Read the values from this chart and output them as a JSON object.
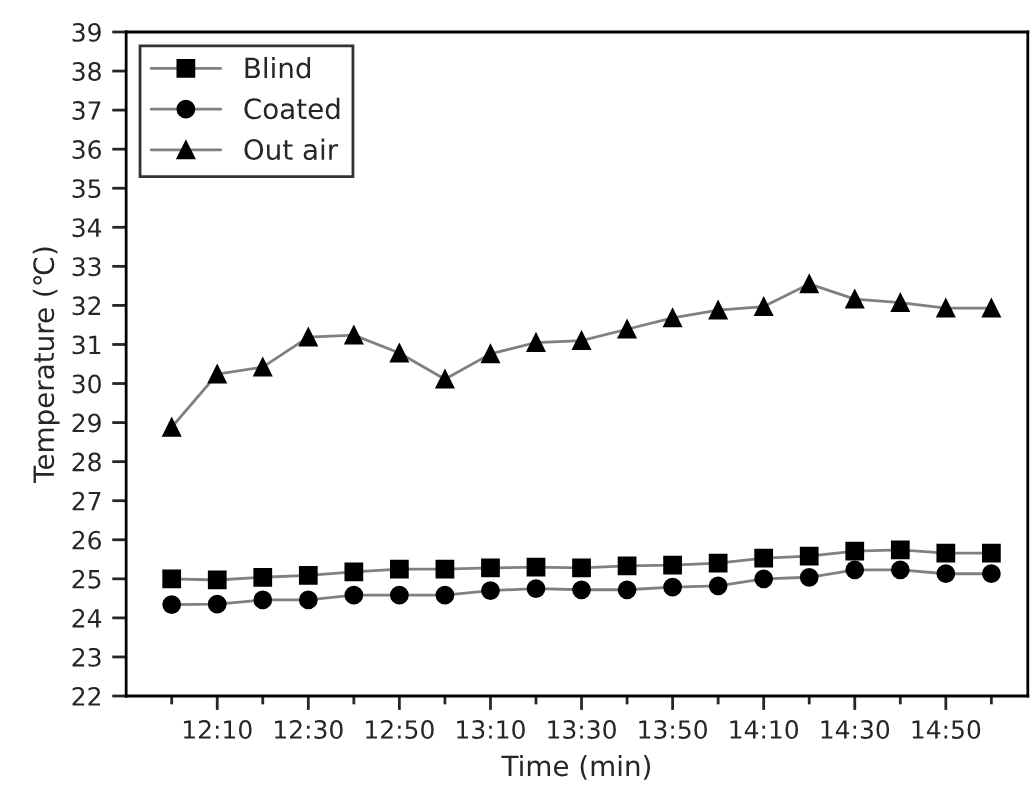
{
  "chart_data": {
    "type": "line",
    "xlabel": "Time (min)",
    "ylabel": "Temperature (℃)",
    "x": [
      12.0,
      12.1667,
      12.3333,
      12.5,
      12.6667,
      12.8333,
      13.0,
      13.1667,
      13.3333,
      13.5,
      13.6667,
      13.8333,
      14.0,
      14.1667,
      14.3333,
      14.5,
      14.6667,
      14.8333,
      15.0
    ],
    "series": [
      {
        "name": "Blind",
        "color": "#000000",
        "marker": "square",
        "values": [
          25.0,
          24.97,
          25.04,
          25.09,
          25.18,
          25.25,
          25.25,
          25.28,
          25.3,
          25.28,
          25.33,
          25.35,
          25.4,
          25.53,
          25.58,
          25.71,
          25.74,
          25.66,
          25.66
        ]
      },
      {
        "name": "Coated",
        "color": "#000000",
        "marker": "circle",
        "values": [
          24.34,
          24.35,
          24.46,
          24.46,
          24.58,
          24.58,
          24.58,
          24.7,
          24.75,
          24.72,
          24.72,
          24.79,
          24.82,
          25.0,
          25.04,
          25.23,
          25.23,
          25.13,
          25.13
        ]
      },
      {
        "name": "Out air",
        "color": "#000000",
        "marker": "triangle",
        "values": [
          28.88,
          30.24,
          30.42,
          31.19,
          31.24,
          30.78,
          30.11,
          30.76,
          31.05,
          31.1,
          31.39,
          31.68,
          31.88,
          31.97,
          32.55,
          32.16,
          32.07,
          31.93,
          31.93
        ]
      }
    ],
    "xlim": [
      11.8333,
      15.1333
    ],
    "xticks": [
      {
        "value": 12.0,
        "label": null
      },
      {
        "value": 12.1667,
        "label": "12:10"
      },
      {
        "value": 12.3333,
        "label": null
      },
      {
        "value": 12.5,
        "label": "12:30"
      },
      {
        "value": 12.6667,
        "label": null
      },
      {
        "value": 12.8333,
        "label": "12:50"
      },
      {
        "value": 13.0,
        "label": null
      },
      {
        "value": 13.1667,
        "label": "13:10"
      },
      {
        "value": 13.3333,
        "label": null
      },
      {
        "value": 13.5,
        "label": "13:30"
      },
      {
        "value": 13.6667,
        "label": null
      },
      {
        "value": 13.8333,
        "label": "13:50"
      },
      {
        "value": 14.0,
        "label": null
      },
      {
        "value": 14.1667,
        "label": "14:10"
      },
      {
        "value": 14.3333,
        "label": null
      },
      {
        "value": 14.5,
        "label": "14:30"
      },
      {
        "value": 14.6667,
        "label": null
      },
      {
        "value": 14.8333,
        "label": "14:50"
      },
      {
        "value": 15.0,
        "label": null
      }
    ],
    "ylim": [
      22,
      39
    ],
    "yticks": [
      22,
      23,
      24,
      25,
      26,
      27,
      28,
      29,
      30,
      31,
      32,
      33,
      34,
      35,
      36,
      37,
      38,
      39
    ],
    "grid": false,
    "legend": "top left",
    "line_style": "solid"
  }
}
